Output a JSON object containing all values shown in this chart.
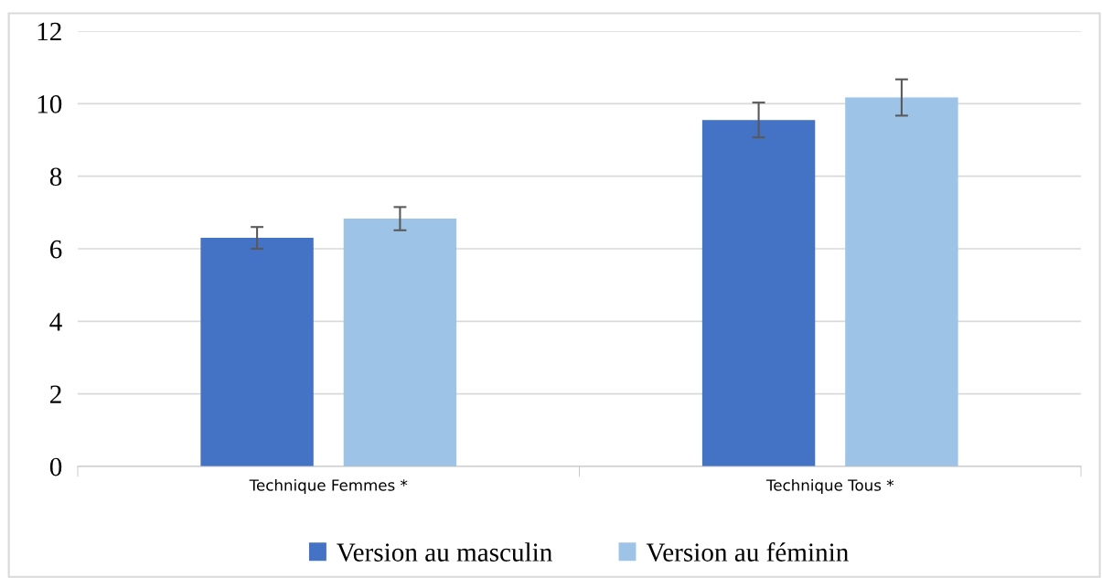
{
  "chart_data": {
    "type": "bar",
    "categories": [
      "Technique Femmes *",
      "Technique Tous *"
    ],
    "series": [
      {
        "name": "Version au masculin",
        "color": "#4472c4",
        "values": [
          6.3,
          9.55
        ],
        "errors": [
          0.3,
          0.48
        ]
      },
      {
        "name": "Version au féminin",
        "color": "#9dc3e6",
        "values": [
          6.83,
          10.17
        ],
        "errors": [
          0.32,
          0.5
        ]
      }
    ],
    "ylim": [
      0,
      12
    ],
    "yticks": [
      0,
      2,
      4,
      6,
      8,
      10,
      12
    ],
    "grid": "y",
    "legend": "bottom"
  }
}
